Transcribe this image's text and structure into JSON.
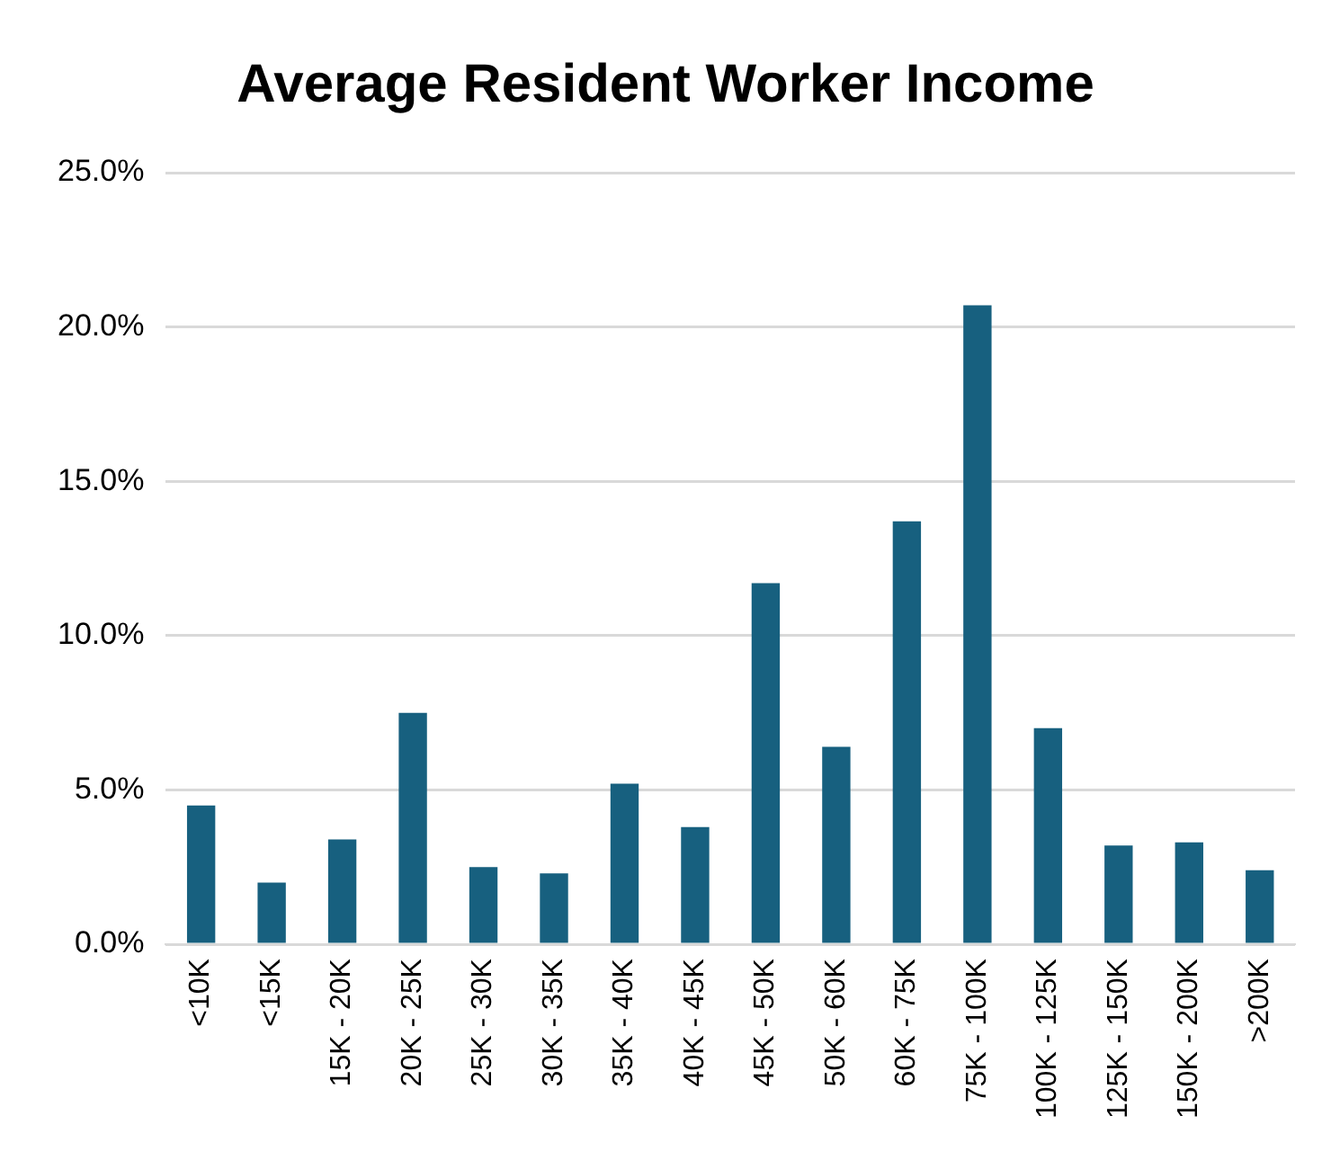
{
  "chart_data": {
    "type": "bar",
    "title": "Average Resident Worker Income",
    "categories": [
      "<10K",
      "<15K",
      "15K - 20K",
      "20K - 25K",
      "25K - 30K",
      "30K - 35K",
      "35K - 40K",
      "40K - 45K",
      "45K - 50K",
      "50K - 60K",
      "60K - 75K",
      "75K - 100K",
      "100K - 125K",
      "125K - 150K",
      "150K - 200K",
      ">200K"
    ],
    "values": [
      4.5,
      2.0,
      3.4,
      7.5,
      2.5,
      2.3,
      5.2,
      3.8,
      11.7,
      6.4,
      13.7,
      20.7,
      7.0,
      3.2,
      3.3,
      2.4
    ],
    "color": "#17607f",
    "ylim": [
      0,
      25
    ],
    "yticks": [
      {
        "value": 0,
        "label": "0.0%"
      },
      {
        "value": 5,
        "label": "5.0%"
      },
      {
        "value": 10,
        "label": "10.0%"
      },
      {
        "value": 15,
        "label": "15.0%"
      },
      {
        "value": 20,
        "label": "20.0%"
      },
      {
        "value": 25,
        "label": "25.0%"
      }
    ],
    "grid": "y"
  }
}
